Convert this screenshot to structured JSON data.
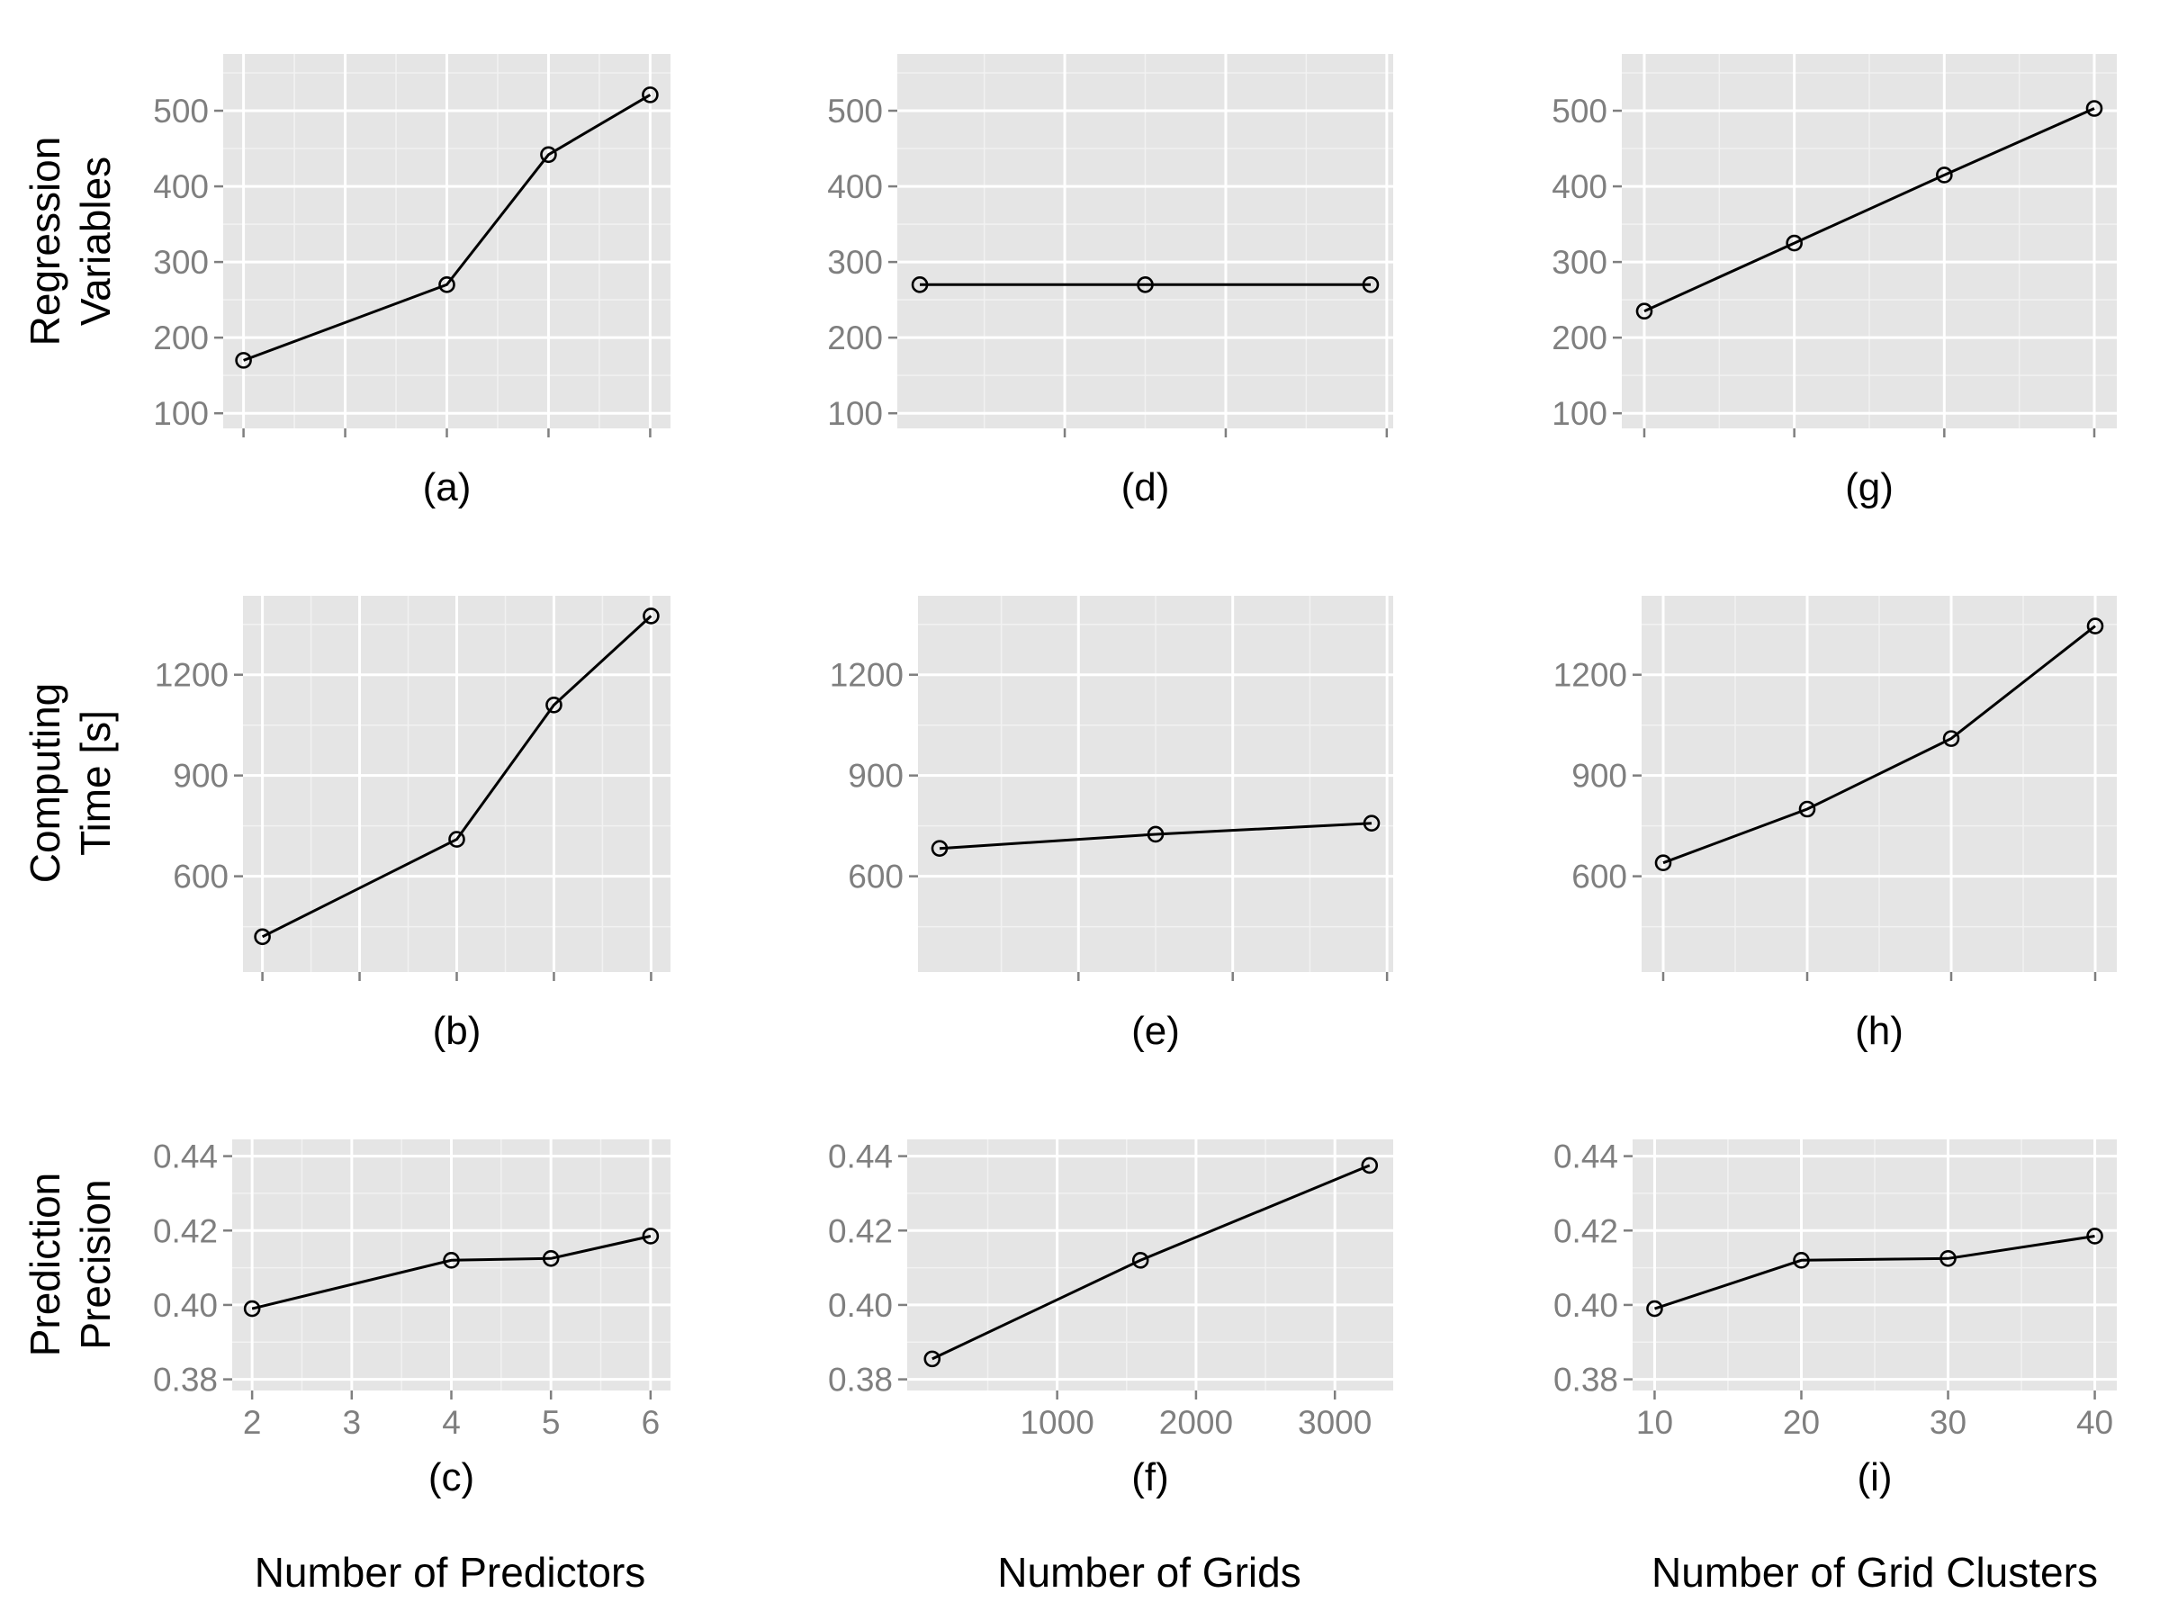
{
  "chart_data": [
    {
      "type": "line",
      "caption": "(a)",
      "row": 0,
      "col": 0,
      "x": [
        2,
        4,
        5,
        6
      ],
      "y": [
        170,
        270,
        442,
        521
      ],
      "xlim": [
        1.8,
        6.2
      ],
      "ylim": [
        80,
        575
      ],
      "yticks": [
        100,
        200,
        300,
        400,
        500
      ],
      "ytick_labels": [
        "100",
        "200",
        "300",
        "400",
        "500"
      ],
      "xticks": [
        2,
        3,
        4,
        5,
        6
      ],
      "xtick_labels": []
    },
    {
      "type": "line",
      "caption": "(b)",
      "row": 1,
      "col": 0,
      "x": [
        2,
        4,
        5,
        6
      ],
      "y": [
        420,
        710,
        1110,
        1375
      ],
      "xlim": [
        1.8,
        6.2
      ],
      "ylim": [
        315,
        1435
      ],
      "yticks": [
        600,
        900,
        1200
      ],
      "ytick_labels": [
        "600",
        "900",
        "1200"
      ],
      "xticks": [
        2,
        3,
        4,
        5,
        6
      ],
      "xtick_labels": []
    },
    {
      "type": "line",
      "caption": "(c)",
      "row": 2,
      "col": 0,
      "x": [
        2,
        4,
        5,
        6
      ],
      "y": [
        0.399,
        0.412,
        0.4125,
        0.4185
      ],
      "xlim": [
        1.8,
        6.2
      ],
      "ylim": [
        0.377,
        0.4445
      ],
      "yticks": [
        0.38,
        0.4,
        0.42,
        0.44
      ],
      "ytick_labels": [
        "0.38",
        "0.40",
        "0.42",
        "0.44"
      ],
      "xticks": [
        2,
        3,
        4,
        5,
        6
      ],
      "xtick_labels": [
        "2",
        "3",
        "4",
        "5",
        "6"
      ]
    },
    {
      "type": "line",
      "caption": "(d)",
      "row": 0,
      "col": 1,
      "x": [
        100,
        1500,
        2900
      ],
      "y": [
        270,
        270,
        270
      ],
      "xlim": [
        -40,
        3040
      ],
      "ylim": [
        80,
        575
      ],
      "yticks": [
        100,
        200,
        300,
        400,
        500
      ],
      "ytick_labels": [
        "100",
        "200",
        "300",
        "400",
        "500"
      ],
      "xticks": [
        1000,
        2000,
        3000
      ],
      "xtick_labels": []
    },
    {
      "type": "line",
      "caption": "(e)",
      "row": 1,
      "col": 1,
      "x": [
        100,
        1500,
        2900
      ],
      "y": [
        683,
        725,
        758
      ],
      "xlim": [
        -40,
        3040
      ],
      "ylim": [
        315,
        1435
      ],
      "yticks": [
        600,
        900,
        1200
      ],
      "ytick_labels": [
        "600",
        "900",
        "1200"
      ],
      "xticks": [
        1000,
        2000,
        3000
      ],
      "xtick_labels": []
    },
    {
      "type": "line",
      "caption": "(f)",
      "row": 2,
      "col": 1,
      "x": [
        100,
        1600,
        3250
      ],
      "y": [
        0.3855,
        0.412,
        0.4375
      ],
      "xlim": [
        -80,
        3420
      ],
      "ylim": [
        0.377,
        0.4445
      ],
      "yticks": [
        0.38,
        0.4,
        0.42,
        0.44
      ],
      "ytick_labels": [
        "0.38",
        "0.40",
        "0.42",
        "0.44"
      ],
      "xticks": [
        1000,
        2000,
        3000
      ],
      "xtick_labels": [
        "1000",
        "2000",
        "3000"
      ]
    },
    {
      "type": "line",
      "caption": "(g)",
      "row": 0,
      "col": 2,
      "x": [
        10,
        20,
        30,
        40
      ],
      "y": [
        235,
        325,
        415,
        503
      ],
      "xlim": [
        8.5,
        41.5
      ],
      "ylim": [
        80,
        575
      ],
      "yticks": [
        100,
        200,
        300,
        400,
        500
      ],
      "ytick_labels": [
        "100",
        "200",
        "300",
        "400",
        "500"
      ],
      "xticks": [
        10,
        20,
        30,
        40
      ],
      "xtick_labels": []
    },
    {
      "type": "line",
      "caption": "(h)",
      "row": 1,
      "col": 2,
      "x": [
        10,
        20,
        30,
        40
      ],
      "y": [
        640,
        800,
        1010,
        1345
      ],
      "xlim": [
        8.5,
        41.5
      ],
      "ylim": [
        315,
        1435
      ],
      "yticks": [
        600,
        900,
        1200
      ],
      "ytick_labels": [
        "600",
        "900",
        "1200"
      ],
      "xticks": [
        10,
        20,
        30,
        40
      ],
      "xtick_labels": []
    },
    {
      "type": "line",
      "caption": "(i)",
      "row": 2,
      "col": 2,
      "x": [
        10,
        20,
        30,
        40
      ],
      "y": [
        0.399,
        0.412,
        0.4125,
        0.4185
      ],
      "xlim": [
        8.5,
        41.5
      ],
      "ylim": [
        0.377,
        0.4445
      ],
      "yticks": [
        0.38,
        0.4,
        0.42,
        0.44
      ],
      "ytick_labels": [
        "0.38",
        "0.40",
        "0.42",
        "0.44"
      ],
      "xticks": [
        10,
        20,
        30,
        40
      ],
      "xtick_labels": [
        "10",
        "20",
        "30",
        "40"
      ]
    }
  ],
  "row_labels": [
    [
      "Regression",
      "Variables"
    ],
    [
      "Computing",
      "Time [s]"
    ],
    [
      "Prediction",
      "Precision"
    ]
  ],
  "column_labels": [
    "Number of Predictors",
    "Number of Grids",
    "Number of Grid Clusters"
  ]
}
